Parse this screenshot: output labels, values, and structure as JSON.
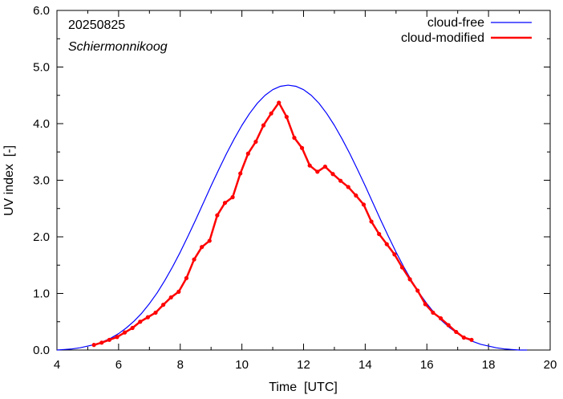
{
  "chart_data": {
    "type": "line",
    "annotations": [
      "20250825",
      "Schiermonnikoog"
    ],
    "xlabel": "Time  [UTC]",
    "ylabel": "UV index  [-]",
    "xlim": [
      4,
      20
    ],
    "ylim": [
      0,
      6
    ],
    "x_ticks": [
      4,
      6,
      8,
      10,
      12,
      14,
      16,
      18,
      20
    ],
    "x_tick_labels": [
      "4",
      "6",
      "8",
      "10",
      "12",
      "14",
      "16",
      "18",
      "20"
    ],
    "y_ticks": [
      0,
      1,
      2,
      3,
      4,
      5,
      6
    ],
    "y_tick_labels": [
      "0.0",
      "1.0",
      "2.0",
      "3.0",
      "4.0",
      "5.0",
      "6.0"
    ],
    "grid": false,
    "legend_position": "top-right",
    "series": [
      {
        "name": "cloud-free",
        "color": "#0000ff",
        "x": [
          4.0,
          4.25,
          4.5,
          4.75,
          5.0,
          5.25,
          5.5,
          5.75,
          6.0,
          6.25,
          6.5,
          6.75,
          7.0,
          7.25,
          7.5,
          7.75,
          8.0,
          8.25,
          8.5,
          8.75,
          9.0,
          9.25,
          9.5,
          9.75,
          10.0,
          10.25,
          10.5,
          10.75,
          11.0,
          11.25,
          11.5,
          11.75,
          12.0,
          12.25,
          12.5,
          12.75,
          13.0,
          13.25,
          13.5,
          13.75,
          14.0,
          14.25,
          14.5,
          14.75,
          15.0,
          15.25,
          15.5,
          15.75,
          16.0,
          16.25,
          16.5,
          16.75,
          17.0,
          17.25,
          17.5,
          17.75,
          18.0,
          18.25,
          18.5,
          18.75,
          19.0,
          19.25
        ],
        "y": [
          0.0,
          0.01,
          0.02,
          0.04,
          0.07,
          0.1,
          0.15,
          0.21,
          0.29,
          0.39,
          0.51,
          0.65,
          0.82,
          1.01,
          1.23,
          1.47,
          1.73,
          2.01,
          2.3,
          2.6,
          2.9,
          3.19,
          3.47,
          3.73,
          3.97,
          4.18,
          4.36,
          4.5,
          4.6,
          4.66,
          4.68,
          4.66,
          4.6,
          4.5,
          4.36,
          4.18,
          3.97,
          3.73,
          3.47,
          3.19,
          2.9,
          2.6,
          2.3,
          2.01,
          1.73,
          1.47,
          1.23,
          1.01,
          0.82,
          0.65,
          0.51,
          0.39,
          0.29,
          0.21,
          0.15,
          0.1,
          0.07,
          0.04,
          0.02,
          0.01,
          0.0,
          0.0
        ]
      },
      {
        "name": "cloud-modified",
        "color": "#ff0000",
        "x": [
          5.2,
          5.45,
          5.7,
          5.95,
          6.2,
          6.45,
          6.7,
          6.95,
          7.2,
          7.45,
          7.7,
          7.95,
          8.2,
          8.45,
          8.7,
          8.95,
          9.2,
          9.45,
          9.7,
          9.95,
          10.2,
          10.45,
          10.7,
          10.95,
          11.2,
          11.45,
          11.7,
          11.95,
          12.2,
          12.45,
          12.7,
          12.95,
          13.2,
          13.45,
          13.7,
          13.95,
          14.2,
          14.45,
          14.7,
          14.95,
          15.2,
          15.45,
          15.7,
          15.95,
          16.2,
          16.45,
          16.7,
          16.95,
          17.2,
          17.45
        ],
        "y": [
          0.09,
          0.13,
          0.18,
          0.23,
          0.31,
          0.39,
          0.5,
          0.58,
          0.66,
          0.8,
          0.93,
          1.03,
          1.27,
          1.6,
          1.82,
          1.93,
          2.38,
          2.6,
          2.7,
          3.12,
          3.47,
          3.68,
          3.97,
          4.18,
          4.37,
          4.12,
          3.75,
          3.57,
          3.26,
          3.15,
          3.24,
          3.11,
          2.99,
          2.88,
          2.73,
          2.57,
          2.27,
          2.05,
          1.87,
          1.69,
          1.46,
          1.25,
          1.05,
          0.81,
          0.66,
          0.56,
          0.44,
          0.32,
          0.22,
          0.18
        ]
      }
    ]
  }
}
